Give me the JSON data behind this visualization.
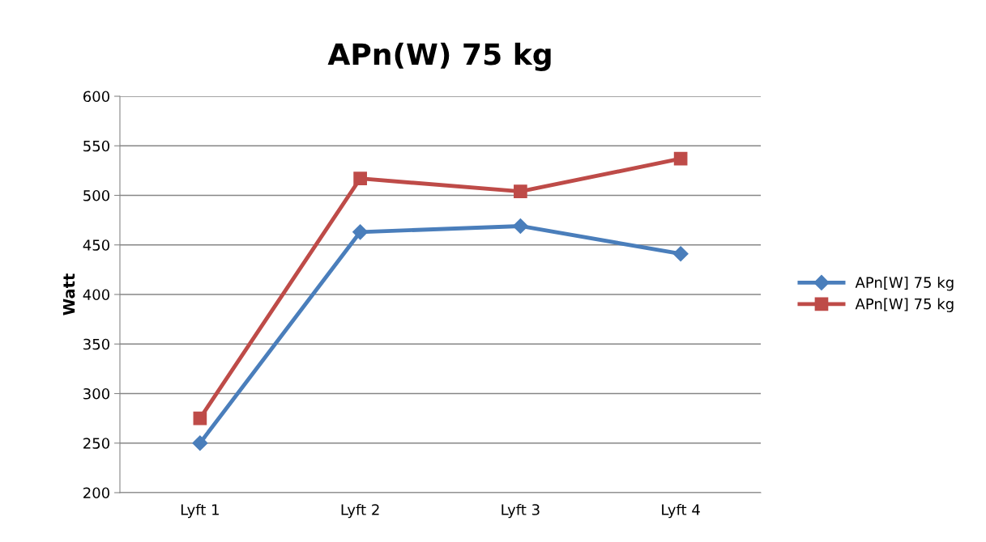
{
  "chart_data": {
    "type": "line",
    "title": "APn(W) 75 kg",
    "ylabel": "Watt",
    "categories": [
      "Lyft 1",
      "Lyft 2",
      "Lyft 3",
      "Lyft 4"
    ],
    "series": [
      {
        "name": "APn[W] 75 kg",
        "color": "#4a7ebb",
        "marker": "diamond",
        "values": [
          250,
          463,
          469,
          441
        ]
      },
      {
        "name": "APn[W] 75 kg",
        "color": "#be4b48",
        "marker": "square",
        "values": [
          275,
          517,
          504,
          537
        ]
      }
    ],
    "ylim": [
      200,
      600
    ],
    "yticks": [
      200,
      250,
      300,
      350,
      400,
      450,
      500,
      550,
      600
    ],
    "grid": "y",
    "legend": "right",
    "line_style": "solid"
  }
}
